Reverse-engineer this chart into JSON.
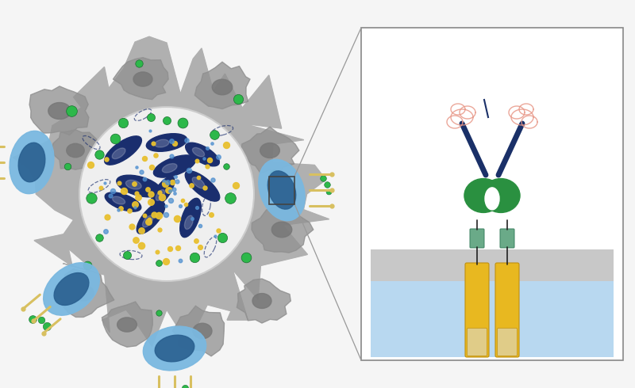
{
  "bg_color": "#f5f5f5",
  "tumor_mass_color": "#b0b0b0",
  "tumor_mass_color2": "#909090",
  "tumor_cell_nucleus_color": "#787878",
  "inner_circle_color": "#efefef",
  "inner_circle_edge": "#cccccc",
  "bacteria_color": "#1a2e6e",
  "green_dot_color": "#2db84a",
  "yellow_dot_color": "#e8c030",
  "blue_dot_color": "#5090d0",
  "t_cell_body_color": "#7ab8e0",
  "t_cell_dark_color": "#2a6090",
  "spike_color": "#d8c060",
  "zoom_box_color": "#444444",
  "zoom_line_color": "#999999",
  "receptor_yellow_color": "#e8b820",
  "receptor_yellow_dark": "#c09010",
  "receptor_tan_color": "#e0cc88",
  "receptor_green_color": "#2a9040",
  "receptor_teal_color": "#6aaa88",
  "receptor_blue_color": "#1a3068",
  "receptor_pink_color": "#e89888",
  "cell_blue_color": "#b8d8f0",
  "cell_gray_color": "#c8c8c8",
  "panel_border_color": "#888888",
  "white": "#ffffff"
}
